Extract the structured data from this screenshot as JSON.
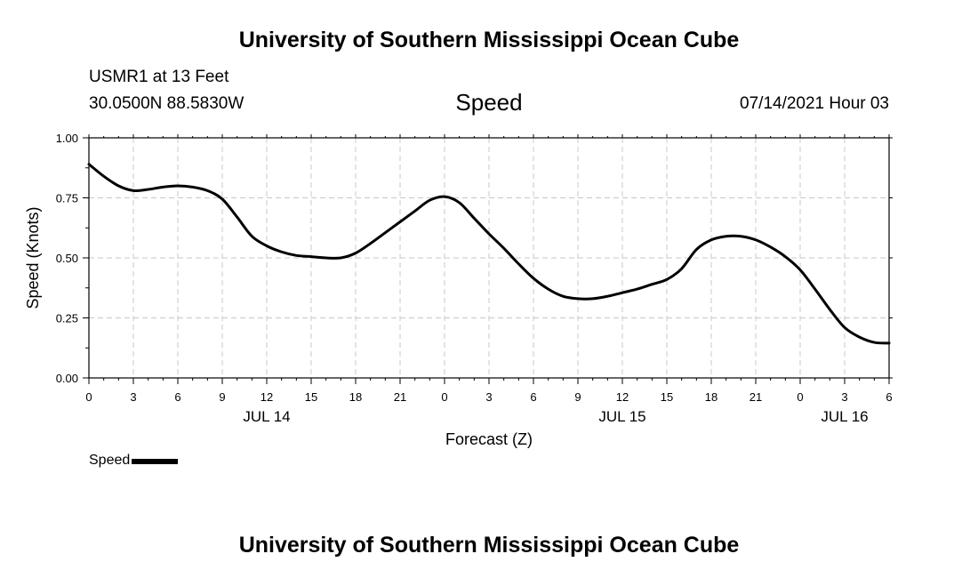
{
  "header": {
    "title": "University of Southern Mississippi Ocean Cube",
    "station": "USMR1 at 13 Feet",
    "coords": "30.0500N  88.5830W",
    "variable": "Speed",
    "datetime": "07/14/2021 Hour 03"
  },
  "footer": {
    "title": "University of Southern Mississippi Ocean Cube"
  },
  "legend": {
    "label": "Speed"
  },
  "chart_data": {
    "type": "line",
    "xlabel": "Forecast (Z)",
    "ylabel": "Speed (Knots)",
    "xlim": [
      0,
      54
    ],
    "ylim": [
      0,
      1
    ],
    "grid": true,
    "x_unit": "hours from 07/14/2021 00Z",
    "x_ticks": [
      {
        "x": 0,
        "label": "0"
      },
      {
        "x": 3,
        "label": "3"
      },
      {
        "x": 6,
        "label": "6"
      },
      {
        "x": 9,
        "label": "9"
      },
      {
        "x": 12,
        "label": "12"
      },
      {
        "x": 15,
        "label": "15"
      },
      {
        "x": 18,
        "label": "18"
      },
      {
        "x": 21,
        "label": "21"
      },
      {
        "x": 24,
        "label": "0"
      },
      {
        "x": 27,
        "label": "3"
      },
      {
        "x": 30,
        "label": "6"
      },
      {
        "x": 33,
        "label": "9"
      },
      {
        "x": 36,
        "label": "12"
      },
      {
        "x": 39,
        "label": "15"
      },
      {
        "x": 42,
        "label": "18"
      },
      {
        "x": 45,
        "label": "21"
      },
      {
        "x": 48,
        "label": "0"
      },
      {
        "x": 51,
        "label": "3"
      },
      {
        "x": 54,
        "label": "6"
      }
    ],
    "y_ticks": [
      {
        "y": 0,
        "label": "0.00"
      },
      {
        "y": 0.25,
        "label": "0.25"
      },
      {
        "y": 0.5,
        "label": "0.50"
      },
      {
        "y": 0.75,
        "label": "0.75"
      },
      {
        "y": 1,
        "label": "1.00"
      }
    ],
    "day_labels": [
      {
        "x": 12,
        "label": "JUL 14"
      },
      {
        "x": 36,
        "label": "JUL 15"
      },
      {
        "x": 51,
        "label": "JUL 16"
      }
    ],
    "series": [
      {
        "name": "Speed",
        "color": "#000000",
        "x": [
          0,
          1,
          2,
          3,
          4,
          5,
          6,
          7,
          8,
          9,
          10,
          11,
          12,
          13,
          14,
          15,
          16,
          17,
          18,
          19,
          20,
          21,
          22,
          23,
          24,
          25,
          26,
          27,
          28,
          29,
          30,
          31,
          32,
          33,
          34,
          35,
          36,
          37,
          38,
          39,
          40,
          41,
          42,
          43,
          44,
          45,
          46,
          47,
          48,
          49,
          50,
          51,
          52,
          53,
          54
        ],
        "y": [
          0.89,
          0.84,
          0.8,
          0.78,
          0.785,
          0.795,
          0.8,
          0.795,
          0.78,
          0.745,
          0.67,
          0.59,
          0.55,
          0.525,
          0.51,
          0.505,
          0.5,
          0.5,
          0.52,
          0.56,
          0.605,
          0.65,
          0.695,
          0.74,
          0.755,
          0.73,
          0.665,
          0.6,
          0.54,
          0.475,
          0.415,
          0.37,
          0.34,
          0.33,
          0.33,
          0.34,
          0.355,
          0.37,
          0.39,
          0.41,
          0.455,
          0.535,
          0.575,
          0.59,
          0.59,
          0.575,
          0.545,
          0.505,
          0.45,
          0.37,
          0.285,
          0.21,
          0.17,
          0.148,
          0.145
        ]
      }
    ]
  }
}
